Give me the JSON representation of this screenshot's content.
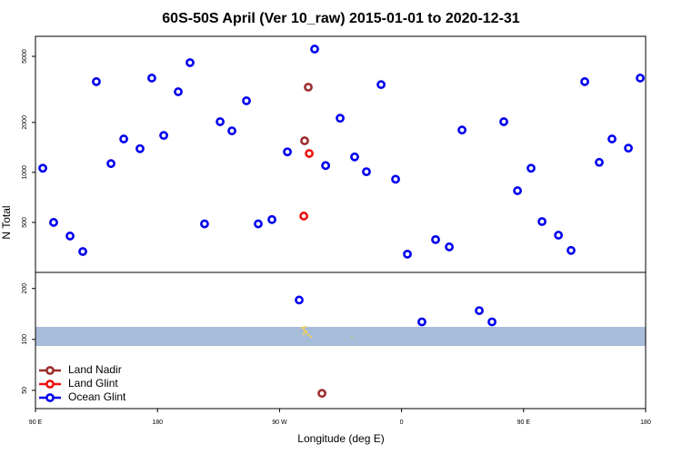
{
  "chart_data": {
    "type": "scatter",
    "title": "60S-50S April (Ver 10_raw)   2015-01-01 to 2020-12-31",
    "xlabel": "Longitude (deg E)",
    "ylabel": "N Total",
    "log_y": true,
    "legend": "lower left",
    "xlim": [
      90,
      540
    ],
    "xticks": [
      {
        "value": 90,
        "label": "90 E"
      },
      180,
      {
        "value": 270,
        "label": "90 W"
      },
      {
        "value": 360,
        "label": "0"
      },
      {
        "value": 450,
        "label": "90 E"
      },
      {
        "value": 540,
        "label": "180"
      }
    ],
    "series": [
      {
        "name": "Land Nadir",
        "color": "#9b2d2d"
      },
      {
        "name": "Land Glint",
        "color": "#ee1111"
      },
      {
        "name": "Ocean Glint",
        "color": "#0000ee"
      }
    ],
    "panels": [
      {
        "ylim": [
          250,
          6600
        ],
        "yticks": [
          500,
          1000,
          2000,
          5000
        ],
        "series": [
          {
            "x": [
              291.2,
              288.5
            ],
            "values": [
              3260,
              1550
            ]
          },
          {
            "x": [
              291.9,
              287.9
            ],
            "values": [
              1300,
              546
            ]
          },
          {
            "x": [
              95.4,
              103.4,
              115.5,
              124.9,
              134.9,
              145.7,
              155.1,
              167.1,
              175.8,
              184.6,
              195.3,
              204,
              214.7,
              226.2,
              234.9,
              245.6,
              254.3,
              264.4,
              275.8,
              295.9,
              304,
              314.7,
              325.4,
              334.1,
              344.9,
              355.6,
              364.3,
              385.1,
              395.2,
              404.6,
              435.4,
              445.5,
              455.5,
              463.6,
              475.7,
              485,
              495.1,
              505.8,
              515.2,
              527.3,
              536
            ],
            "values": [
              1060,
              500,
              414,
              334,
              3520,
              1130,
              1590,
              1390,
              3700,
              1670,
              3060,
              4580,
              490,
              2020,
              1780,
              2700,
              490,
              520,
              1330,
              5530,
              1100,
              2120,
              1240,
              1010,
              3380,
              910,
              322,
              394,
              356,
              1800,
              2020,
              776,
              1060,
              506,
              419,
              339,
              3520,
              1150,
              1590,
              1400,
              3700
            ]
          }
        ]
      },
      {
        "ylim": [
          39,
          249
        ],
        "yticks": [
          50,
          100,
          200
        ],
        "series": [
          {
            "x": [
              301.3
            ],
            "values": [
              48
            ]
          },
          {
            "x": [],
            "values": []
          },
          {
            "x": [
              284.5,
              375,
              417.3,
              426.7
            ],
            "values": [
              171,
              127,
              148,
              127
            ]
          }
        ]
      }
    ]
  }
}
